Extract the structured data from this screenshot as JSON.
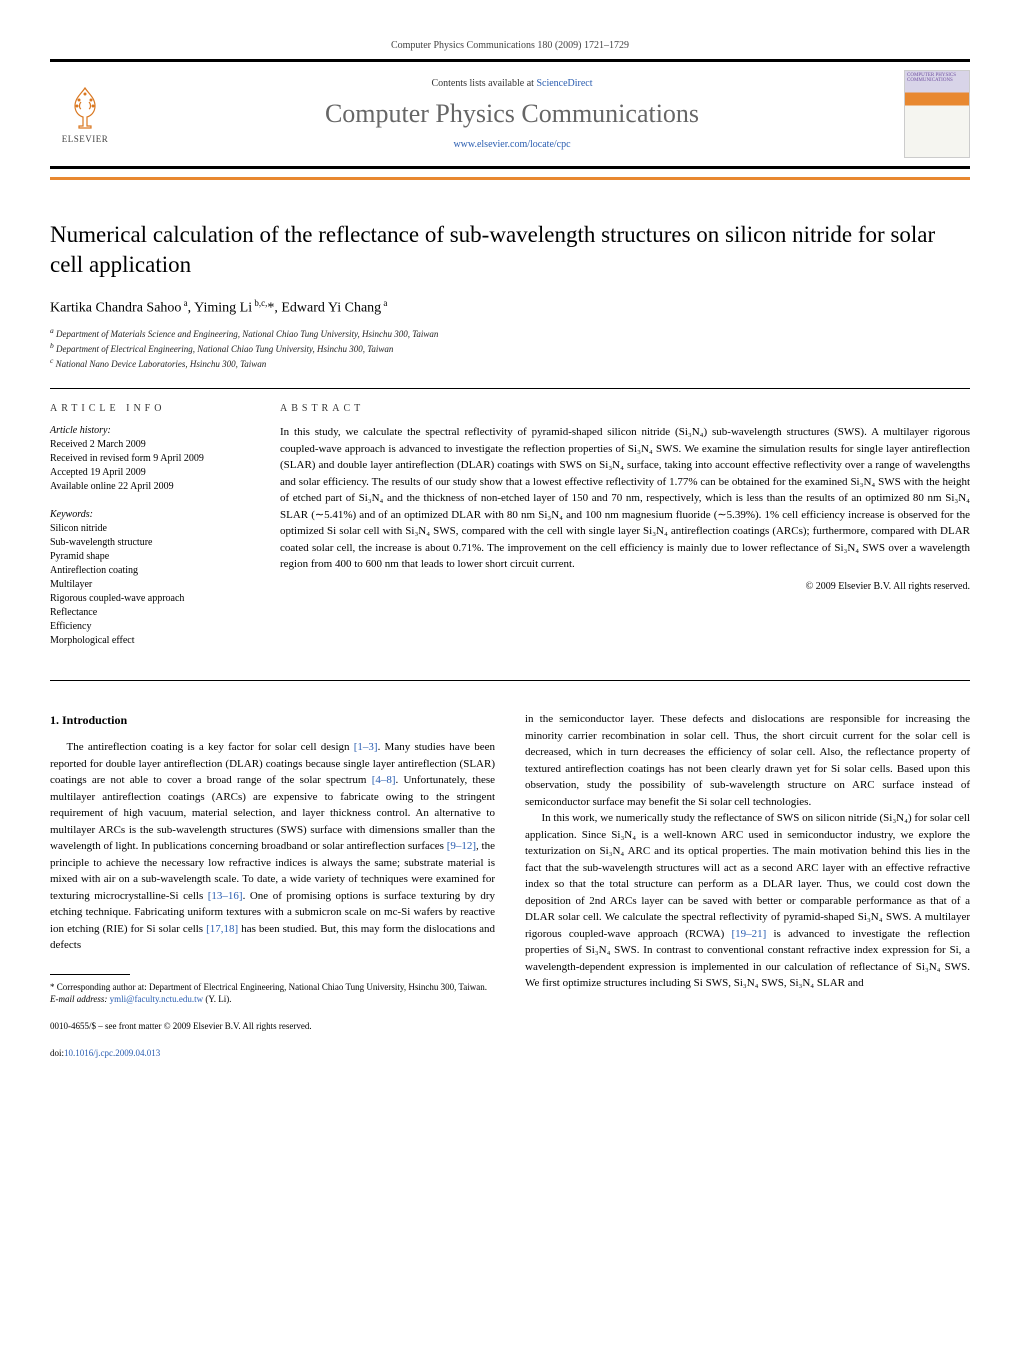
{
  "header": {
    "citation": "Computer Physics Communications 180 (2009) 1721–1729",
    "contents_prefix": "Contents lists available at ",
    "contents_link": "ScienceDirect",
    "journal": "Computer Physics Communications",
    "url": "www.elsevier.com/locate/cpc",
    "publisher": "ELSEVIER",
    "cover_text": "COMPUTER PHYSICS COMMUNICATIONS"
  },
  "title": "Numerical calculation of the reflectance of sub-wavelength structures on silicon nitride for solar cell application",
  "authors_html": "Kartika Chandra Sahoo<sup> a</sup>, Yiming Li<sup> b,c,</sup>*, Edward Yi Chang<sup> a</sup>",
  "affiliations": [
    "a Department of Materials Science and Engineering, National Chiao Tung University, Hsinchu 300, Taiwan",
    "b Department of Electrical Engineering, National Chiao Tung University, Hsinchu 300, Taiwan",
    "c National Nano Device Laboratories, Hsinchu 300, Taiwan"
  ],
  "article_info": {
    "heading": "ARTICLE INFO",
    "history_label": "Article history:",
    "history": [
      "Received 2 March 2009",
      "Received in revised form 9 April 2009",
      "Accepted 19 April 2009",
      "Available online 22 April 2009"
    ],
    "keywords_label": "Keywords:",
    "keywords": [
      "Silicon nitride",
      "Sub-wavelength structure",
      "Pyramid shape",
      "Antireflection coating",
      "Multilayer",
      "Rigorous coupled-wave approach",
      "Reflectance",
      "Efficiency",
      "Morphological effect"
    ]
  },
  "abstract": {
    "heading": "ABSTRACT",
    "text": "In this study, we calculate the spectral reflectivity of pyramid-shaped silicon nitride (Si₃N₄) sub-wavelength structures (SWS). A multilayer rigorous coupled-wave approach is advanced to investigate the reflection properties of Si₃N₄ SWS. We examine the simulation results for single layer antireflection (SLAR) and double layer antireflection (DLAR) coatings with SWS on Si₃N₄ surface, taking into account effective reflectivity over a range of wavelengths and solar efficiency. The results of our study show that a lowest effective reflectivity of 1.77% can be obtained for the examined Si₃N₄ SWS with the height of etched part of Si₃N₄ and the thickness of non-etched layer of 150 and 70 nm, respectively, which is less than the results of an optimized 80 nm Si₃N₄ SLAR (∼5.41%) and of an optimized DLAR with 80 nm Si₃N₄ and 100 nm magnesium fluoride (∼5.39%). 1% cell efficiency increase is observed for the optimized Si solar cell with Si₃N₄ SWS, compared with the cell with single layer Si₃N₄ antireflection coatings (ARCs); furthermore, compared with DLAR coated solar cell, the increase is about 0.71%. The improvement on the cell efficiency is mainly due to lower reflectance of Si₃N₄ SWS over a wavelength region from 400 to 600 nm that leads to lower short circuit current.",
    "copyright": "© 2009 Elsevier B.V. All rights reserved."
  },
  "body": {
    "section_heading": "1. Introduction",
    "col1_p1_a": "The antireflection coating is a key factor for solar cell design ",
    "ref1": "[1–3]",
    "col1_p1_b": ". Many studies have been reported for double layer antireflection (DLAR) coatings because single layer antireflection (SLAR) coatings are not able to cover a broad range of the solar spectrum ",
    "ref2": "[4–8]",
    "col1_p1_c": ". Unfortunately, these multilayer antireflection coatings (ARCs) are expensive to fabricate owing to the stringent requirement of high vacuum, material selection, and layer thickness control. An alternative to multilayer ARCs is the sub-wavelength structures (SWS) surface with dimensions smaller than the wavelength of light. In publications concerning broadband or solar antireflection surfaces ",
    "ref3": "[9–12]",
    "col1_p1_d": ", the principle to achieve the necessary low refractive indices is always the same; substrate material is mixed with air on a sub-wavelength scale. To date, a wide variety of techniques were examined for texturing microcrystalline-Si cells ",
    "ref4": "[13–16]",
    "col1_p1_e": ". One of promising options is surface texturing by dry etching technique. Fabricating uniform textures with a submicron scale on mc-Si wafers by reactive ion etching (RIE) for Si solar cells ",
    "ref5": "[17,18]",
    "col1_p1_f": " has been studied. But, this may form the dislocations and defects",
    "col2_p1": "in the semiconductor layer. These defects and dislocations are responsible for increasing the minority carrier recombination in solar cell. Thus, the short circuit current for the solar cell is decreased, which in turn decreases the efficiency of solar cell. Also, the reflectance property of textured antireflection coatings has not been clearly drawn yet for Si solar cells. Based upon this observation, study the possibility of sub-wavelength structure on ARC surface instead of semiconductor surface may benefit the Si solar cell technologies.",
    "col2_p2_a": "In this work, we numerically study the reflectance of SWS on silicon nitride (Si₃N₄) for solar cell application. Since Si₃N₄ is a well-known ARC used in semiconductor industry, we explore the texturization on Si₃N₄ ARC and its optical properties. The main motivation behind this lies in the fact that the sub-wavelength structures will act as a second ARC layer with an effective refractive index so that the total structure can perform as a DLAR layer. Thus, we could cost down the deposition of 2nd ARCs layer can be saved with better or comparable performance as that of a DLAR solar cell. We calculate the spectral reflectivity of pyramid-shaped Si₃N₄ SWS. A multilayer rigorous coupled-wave approach (RCWA) ",
    "ref6": "[19–21]",
    "col2_p2_b": " is advanced to investigate the reflection properties of Si₃N₄ SWS. In contrast to conventional constant refractive index expression for Si, a wavelength-dependent expression is implemented in our calculation of reflectance of Si₃N₄ SWS. We first optimize structures including Si SWS, Si₃N₄ SWS, Si₃N₄ SLAR and"
  },
  "footnote": {
    "corresponding": "* Corresponding author at: Department of Electrical Engineering, National Chiao Tung University, Hsinchu 300, Taiwan.",
    "email_label": "E-mail address: ",
    "email": "ymli@faculty.nctu.edu.tw",
    "email_suffix": " (Y. Li)."
  },
  "footer": {
    "issn": "0010-4655/$ – see front matter © 2009 Elsevier B.V. All rights reserved.",
    "doi_label": "doi:",
    "doi": "10.1016/j.cpc.2009.04.013"
  },
  "colors": {
    "orange": "#e88830",
    "link": "#2a5db0",
    "journal_gray": "#666666"
  }
}
